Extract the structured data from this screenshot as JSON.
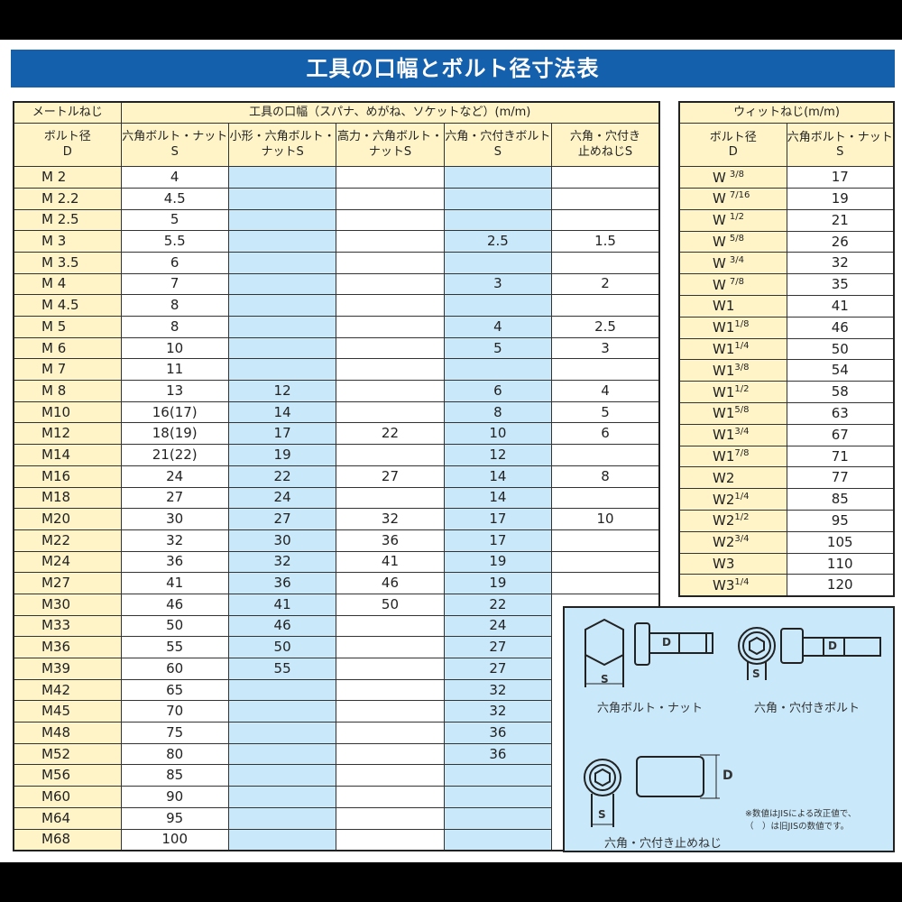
{
  "title": "工具の口幅とボルト径寸法表",
  "metric": {
    "header_group_left": "メートルねじ",
    "header_group_right": "工具の口幅（スパナ、めがね、ソケットなど）(m/m)",
    "columns": [
      "ボルト径\nD",
      "六角ボルト・ナット\nS",
      "小形・六角ボルト・\nナットS",
      "高力・六角ボルト・\nナットS",
      "六角・穴付きボルト\nS",
      "六角・穴付き\n止めねじS"
    ],
    "rows": [
      [
        "M 2",
        "4",
        "",
        "",
        "",
        ""
      ],
      [
        "M 2.2",
        "4.5",
        "",
        "",
        "",
        ""
      ],
      [
        "M 2.5",
        "5",
        "",
        "",
        "",
        ""
      ],
      [
        "M 3",
        "5.5",
        "",
        "",
        "2.5",
        "1.5"
      ],
      [
        "M 3.5",
        "6",
        "",
        "",
        "",
        ""
      ],
      [
        "M 4",
        "7",
        "",
        "",
        "3",
        "2"
      ],
      [
        "M 4.5",
        "8",
        "",
        "",
        "",
        ""
      ],
      [
        "M 5",
        "8",
        "",
        "",
        "4",
        "2.5"
      ],
      [
        "M 6",
        "10",
        "",
        "",
        "5",
        "3"
      ],
      [
        "M 7",
        "11",
        "",
        "",
        "",
        ""
      ],
      [
        "M 8",
        "13",
        "12",
        "",
        "6",
        "4"
      ],
      [
        "M10",
        "16(17)",
        "14",
        "",
        "8",
        "5"
      ],
      [
        "M12",
        "18(19)",
        "17",
        "22",
        "10",
        "6"
      ],
      [
        "M14",
        "21(22)",
        "19",
        "",
        "12",
        ""
      ],
      [
        "M16",
        "24",
        "22",
        "27",
        "14",
        "8"
      ],
      [
        "M18",
        "27",
        "24",
        "",
        "14",
        ""
      ],
      [
        "M20",
        "30",
        "27",
        "32",
        "17",
        "10"
      ],
      [
        "M22",
        "32",
        "30",
        "36",
        "17",
        ""
      ],
      [
        "M24",
        "36",
        "32",
        "41",
        "19",
        ""
      ],
      [
        "M27",
        "41",
        "36",
        "46",
        "19",
        ""
      ],
      [
        "M30",
        "46",
        "41",
        "50",
        "22",
        ""
      ],
      [
        "M33",
        "50",
        "46",
        "",
        "24",
        ""
      ],
      [
        "M36",
        "55",
        "50",
        "",
        "27",
        ""
      ],
      [
        "M39",
        "60",
        "55",
        "",
        "27",
        ""
      ],
      [
        "M42",
        "65",
        "",
        "",
        "32",
        ""
      ],
      [
        "M45",
        "70",
        "",
        "",
        "32",
        ""
      ],
      [
        "M48",
        "75",
        "",
        "",
        "36",
        ""
      ],
      [
        "M52",
        "80",
        "",
        "",
        "36",
        ""
      ],
      [
        "M56",
        "85",
        "",
        "",
        "",
        ""
      ],
      [
        "M60",
        "90",
        "",
        "",
        "",
        ""
      ],
      [
        "M64",
        "95",
        "",
        "",
        "",
        ""
      ],
      [
        "M68",
        "100",
        "",
        "",
        "",
        ""
      ]
    ]
  },
  "whitworth": {
    "header": "ウィットねじ(m/m)",
    "columns": [
      "ボルト径\nD",
      "六角ボルト・ナット\nS"
    ],
    "rows": [
      [
        "W",
        "3/8",
        "17"
      ],
      [
        "W",
        "7/16",
        "19"
      ],
      [
        "W",
        "1/2",
        "21"
      ],
      [
        "W",
        "5/8",
        "26"
      ],
      [
        "W",
        "3/4",
        "32"
      ],
      [
        "W",
        "7/8",
        "35"
      ],
      [
        "W1",
        "",
        "41"
      ],
      [
        "W1",
        "1/8",
        "46"
      ],
      [
        "W1",
        "1/4",
        "50"
      ],
      [
        "W1",
        "3/8",
        "54"
      ],
      [
        "W1",
        "1/2",
        "58"
      ],
      [
        "W1",
        "5/8",
        "63"
      ],
      [
        "W1",
        "3/4",
        "67"
      ],
      [
        "W1",
        "7/8",
        "71"
      ],
      [
        "W2",
        "",
        "77"
      ],
      [
        "W2",
        "1/4",
        "85"
      ],
      [
        "W2",
        "1/2",
        "95"
      ],
      [
        "W2",
        "3/4",
        "105"
      ],
      [
        "W3",
        "",
        "110"
      ],
      [
        "W3",
        "1/4",
        "120"
      ]
    ]
  },
  "diagram": {
    "hex_bolt_label": "六角ボルト・ナット",
    "socket_bolt_label": "六角・穴付きボルト",
    "set_screw_label": "六角・穴付き止めねじ",
    "dim_s": "S",
    "dim_d": "D",
    "note1": "※数値はJISによる改正値で、",
    "note2": "（　）は旧JISの数値です。"
  },
  "colors": {
    "title_bar": "#1560ad",
    "header_bg": "#fff4c8",
    "highlight_col": "#c9e8fa"
  }
}
